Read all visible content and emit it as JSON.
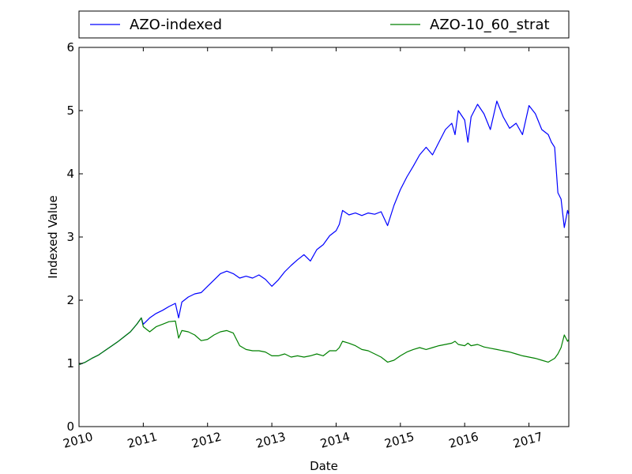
{
  "chart_data": {
    "type": "line",
    "title": "",
    "xlabel": "Date",
    "ylabel": "Indexed Value",
    "xlim": [
      2010.0,
      2017.62
    ],
    "ylim": [
      0,
      6
    ],
    "xticks": [
      2010,
      2011,
      2012,
      2013,
      2014,
      2015,
      2016,
      2017
    ],
    "xtick_labels": [
      "2010",
      "2011",
      "2012",
      "2013",
      "2014",
      "2015",
      "2016",
      "2017"
    ],
    "yticks": [
      0,
      1,
      2,
      3,
      4,
      5,
      6
    ],
    "ytick_labels": [
      "0",
      "1",
      "2",
      "3",
      "4",
      "5",
      "6"
    ],
    "grid": false,
    "legend_position": "top, above plot",
    "series": [
      {
        "name": "AZO-indexed",
        "color": "#0000ff",
        "x": [
          2010.0,
          2010.1,
          2010.2,
          2010.3,
          2010.4,
          2010.5,
          2010.6,
          2010.7,
          2010.8,
          2010.9,
          2010.97,
          2011.0,
          2011.1,
          2011.2,
          2011.3,
          2011.4,
          2011.5,
          2011.55,
          2011.6,
          2011.7,
          2011.8,
          2011.9,
          2012.0,
          2012.1,
          2012.2,
          2012.3,
          2012.4,
          2012.5,
          2012.6,
          2012.7,
          2012.8,
          2012.9,
          2013.0,
          2013.1,
          2013.2,
          2013.3,
          2013.4,
          2013.5,
          2013.6,
          2013.7,
          2013.8,
          2013.9,
          2014.0,
          2014.05,
          2014.1,
          2014.2,
          2014.3,
          2014.4,
          2014.5,
          2014.6,
          2014.7,
          2014.8,
          2014.9,
          2015.0,
          2015.1,
          2015.2,
          2015.3,
          2015.4,
          2015.5,
          2015.6,
          2015.7,
          2015.8,
          2015.85,
          2015.9,
          2016.0,
          2016.05,
          2016.1,
          2016.2,
          2016.3,
          2016.4,
          2016.5,
          2016.6,
          2016.7,
          2016.8,
          2016.9,
          2017.0,
          2017.1,
          2017.2,
          2017.3,
          2017.35,
          2017.4,
          2017.45,
          2017.5,
          2017.55,
          2017.6,
          2017.62
        ],
        "y": [
          0.98,
          1.02,
          1.08,
          1.13,
          1.2,
          1.27,
          1.34,
          1.42,
          1.5,
          1.62,
          1.72,
          1.62,
          1.72,
          1.79,
          1.84,
          1.9,
          1.95,
          1.72,
          1.97,
          2.05,
          2.1,
          2.12,
          2.22,
          2.32,
          2.42,
          2.46,
          2.42,
          2.35,
          2.38,
          2.35,
          2.4,
          2.33,
          2.22,
          2.32,
          2.45,
          2.55,
          2.64,
          2.72,
          2.62,
          2.8,
          2.88,
          3.02,
          3.1,
          3.2,
          3.42,
          3.35,
          3.38,
          3.34,
          3.38,
          3.36,
          3.4,
          3.18,
          3.5,
          3.75,
          3.95,
          4.12,
          4.3,
          4.42,
          4.3,
          4.5,
          4.7,
          4.8,
          4.62,
          5.0,
          4.85,
          4.5,
          4.9,
          5.1,
          4.95,
          4.7,
          5.15,
          4.9,
          4.72,
          4.8,
          4.62,
          5.08,
          4.95,
          4.7,
          4.62,
          4.5,
          4.42,
          3.7,
          3.6,
          3.15,
          3.42,
          3.35
        ]
      },
      {
        "name": "AZO-10_60_strat",
        "color": "#008000",
        "x": [
          2010.0,
          2010.1,
          2010.2,
          2010.3,
          2010.4,
          2010.5,
          2010.6,
          2010.7,
          2010.8,
          2010.9,
          2010.97,
          2011.0,
          2011.1,
          2011.2,
          2011.3,
          2011.4,
          2011.5,
          2011.55,
          2011.6,
          2011.7,
          2011.8,
          2011.9,
          2012.0,
          2012.1,
          2012.2,
          2012.3,
          2012.4,
          2012.5,
          2012.6,
          2012.7,
          2012.8,
          2012.9,
          2013.0,
          2013.1,
          2013.2,
          2013.3,
          2013.4,
          2013.5,
          2013.6,
          2013.7,
          2013.8,
          2013.9,
          2014.0,
          2014.05,
          2014.1,
          2014.2,
          2014.3,
          2014.4,
          2014.5,
          2014.6,
          2014.7,
          2014.8,
          2014.9,
          2015.0,
          2015.1,
          2015.2,
          2015.3,
          2015.4,
          2015.5,
          2015.6,
          2015.7,
          2015.8,
          2015.85,
          2015.9,
          2016.0,
          2016.05,
          2016.1,
          2016.2,
          2016.3,
          2016.4,
          2016.5,
          2016.6,
          2016.7,
          2016.8,
          2016.9,
          2017.0,
          2017.1,
          2017.2,
          2017.3,
          2017.35,
          2017.4,
          2017.45,
          2017.5,
          2017.55,
          2017.6,
          2017.62
        ],
        "y": [
          0.98,
          1.02,
          1.08,
          1.13,
          1.2,
          1.27,
          1.34,
          1.42,
          1.5,
          1.62,
          1.72,
          1.58,
          1.5,
          1.58,
          1.62,
          1.66,
          1.67,
          1.4,
          1.52,
          1.5,
          1.45,
          1.36,
          1.38,
          1.45,
          1.5,
          1.52,
          1.48,
          1.28,
          1.22,
          1.2,
          1.2,
          1.18,
          1.12,
          1.12,
          1.15,
          1.1,
          1.12,
          1.1,
          1.12,
          1.15,
          1.12,
          1.2,
          1.2,
          1.25,
          1.35,
          1.32,
          1.28,
          1.22,
          1.2,
          1.15,
          1.1,
          1.02,
          1.05,
          1.12,
          1.18,
          1.22,
          1.25,
          1.22,
          1.25,
          1.28,
          1.3,
          1.32,
          1.35,
          1.3,
          1.28,
          1.32,
          1.28,
          1.3,
          1.26,
          1.24,
          1.22,
          1.2,
          1.18,
          1.15,
          1.12,
          1.1,
          1.08,
          1.05,
          1.02,
          1.05,
          1.08,
          1.15,
          1.25,
          1.45,
          1.35,
          1.38
        ]
      }
    ]
  }
}
